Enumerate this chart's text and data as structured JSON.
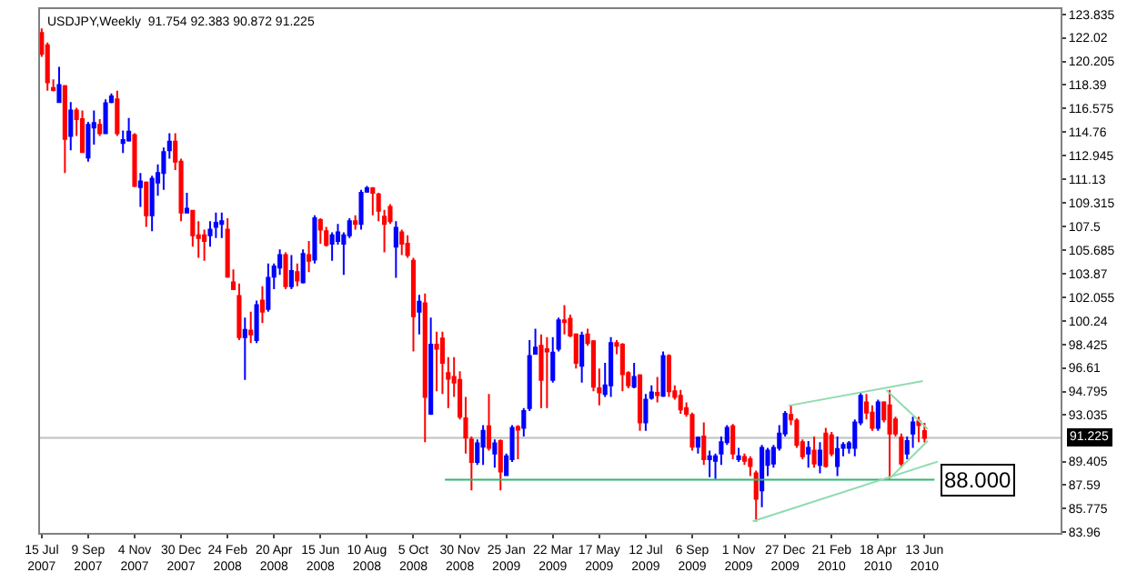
{
  "chart_data": {
    "type": "candlestick",
    "title": "USDJPY,Weekly  91.754 92.383 90.872 91.225",
    "xlim": [
      "2007-07-13",
      "2010-11-24"
    ],
    "ylim": [
      83.91,
      124.23
    ],
    "xticks": [
      {
        "value": "2007-07-15",
        "label": "15 Jul 2007"
      },
      {
        "value": "2007-09-09",
        "label": "9 Sep 2007"
      },
      {
        "value": "2007-11-04",
        "label": "4 Nov 2007"
      },
      {
        "value": "2007-12-30",
        "label": "30 Dec 2007"
      },
      {
        "value": "2008-02-24",
        "label": "24 Feb 2008"
      },
      {
        "value": "2008-04-20",
        "label": "20 Apr 2008"
      },
      {
        "value": "2008-06-15",
        "label": "15 Jun 2008"
      },
      {
        "value": "2008-08-10",
        "label": "10 Aug 2008"
      },
      {
        "value": "2008-10-05",
        "label": "5 Oct 2008"
      },
      {
        "value": "2008-11-30",
        "label": "30 Nov 2008"
      },
      {
        "value": "2009-01-25",
        "label": "25 Jan 2009"
      },
      {
        "value": "2009-03-22",
        "label": "22 Mar 2009"
      },
      {
        "value": "2009-05-17",
        "label": "17 May 2009"
      },
      {
        "value": "2009-07-12",
        "label": "12 Jul 2009"
      },
      {
        "value": "2009-09-06",
        "label": "6 Sep 2009"
      },
      {
        "value": "2009-11-01",
        "label": "1 Nov 2009"
      },
      {
        "value": "2009-12-27",
        "label": "27 Dec 2009"
      },
      {
        "value": "2010-02-21",
        "label": "21 Feb 2010"
      },
      {
        "value": "2010-04-18",
        "label": "18 Apr 2010"
      },
      {
        "value": "2010-06-13",
        "label": "13 Jun 2010"
      }
    ],
    "yticks": [
      123.835,
      122.02,
      120.205,
      118.39,
      116.575,
      114.76,
      112.945,
      111.13,
      109.315,
      107.5,
      105.685,
      103.87,
      102.055,
      100.24,
      98.425,
      96.61,
      94.795,
      93.035,
      89.405,
      87.59,
      85.775,
      83.96
    ],
    "grid": false,
    "ref_lines": [
      {
        "axis": "y",
        "value": 91.225,
        "label": "91.225",
        "color": "#c0c0c0"
      }
    ],
    "annotations": [
      {
        "text": "88.000",
        "x": "2010-06-25",
        "y": 88
      }
    ],
    "series": [
      {
        "x": [
          "2007-07-15",
          "2007-07-22",
          "2007-07-29",
          "2007-08-05",
          "2007-08-12",
          "2007-08-19",
          "2007-08-26",
          "2007-09-02",
          "2007-09-09",
          "2007-09-16",
          "2007-09-23",
          "2007-09-30",
          "2007-10-07",
          "2007-10-14",
          "2007-10-21",
          "2007-10-28",
          "2007-11-04",
          "2007-11-11",
          "2007-11-18",
          "2007-11-25",
          "2007-12-02",
          "2007-12-09",
          "2007-12-16",
          "2007-12-23",
          "2007-12-30",
          "2008-01-06",
          "2008-01-13",
          "2008-01-20",
          "2008-01-27",
          "2008-02-03",
          "2008-02-10",
          "2008-02-17",
          "2008-02-24",
          "2008-03-02",
          "2008-03-09",
          "2008-03-16",
          "2008-03-23",
          "2008-03-30",
          "2008-04-06",
          "2008-04-13",
          "2008-04-20",
          "2008-04-27",
          "2008-05-04",
          "2008-05-11",
          "2008-05-18",
          "2008-05-25",
          "2008-06-01",
          "2008-06-08",
          "2008-06-15",
          "2008-06-22",
          "2008-06-29",
          "2008-07-06",
          "2008-07-13",
          "2008-07-20",
          "2008-07-27",
          "2008-08-03",
          "2008-08-10",
          "2008-08-17",
          "2008-08-24",
          "2008-08-31",
          "2008-09-07",
          "2008-09-14",
          "2008-09-21",
          "2008-09-28",
          "2008-10-05",
          "2008-10-12",
          "2008-10-19",
          "2008-10-26",
          "2008-11-02",
          "2008-11-09",
          "2008-11-16",
          "2008-11-23",
          "2008-11-30",
          "2008-12-07",
          "2008-12-14",
          "2008-12-21",
          "2008-12-28",
          "2009-01-04",
          "2009-01-11",
          "2009-01-18",
          "2009-01-25",
          "2009-02-01",
          "2009-02-08",
          "2009-02-15",
          "2009-02-22",
          "2009-03-01",
          "2009-03-08",
          "2009-03-15",
          "2009-03-22",
          "2009-03-29",
          "2009-04-05",
          "2009-04-12",
          "2009-04-19",
          "2009-04-26",
          "2009-05-03",
          "2009-05-10",
          "2009-05-17",
          "2009-05-24",
          "2009-05-31",
          "2009-06-07",
          "2009-06-14",
          "2009-06-21",
          "2009-06-28",
          "2009-07-05",
          "2009-07-12",
          "2009-07-19",
          "2009-07-26",
          "2009-08-02",
          "2009-08-09",
          "2009-08-16",
          "2009-08-23",
          "2009-08-30",
          "2009-09-06",
          "2009-09-13",
          "2009-09-20",
          "2009-09-27",
          "2009-10-04",
          "2009-10-11",
          "2009-10-18",
          "2009-10-25",
          "2009-11-01",
          "2009-11-08",
          "2009-11-15",
          "2009-11-22",
          "2009-11-29",
          "2009-12-06",
          "2009-12-13",
          "2009-12-20",
          "2009-12-27",
          "2010-01-03",
          "2010-01-10",
          "2010-01-17",
          "2010-01-24",
          "2010-01-31",
          "2010-02-07",
          "2010-02-14",
          "2010-02-21",
          "2010-02-28",
          "2010-03-07",
          "2010-03-14",
          "2010-03-21",
          "2010-03-28",
          "2010-04-04",
          "2010-04-11",
          "2010-04-18",
          "2010-04-25",
          "2010-05-02",
          "2010-05-09",
          "2010-05-16",
          "2010-05-23",
          "2010-05-30",
          "2010-06-06",
          "2010-06-13"
        ],
        "colors": [
          "#ff0000",
          "#ff0000",
          "#ff0000",
          "#0000ff",
          "#ff0000",
          "#0000ff",
          "#ff0000",
          "#ff0000",
          "#0000ff",
          "#0000ff",
          "#ff0000",
          "#0000ff",
          "#0000ff",
          "#ff0000",
          "#0000ff",
          "#0000ff",
          "#ff0000",
          "#0000ff",
          "#ff0000",
          "#0000ff",
          "#0000ff",
          "#0000ff",
          "#0000ff",
          "#ff0000",
          "#ff0000",
          "#0000ff",
          "#ff0000",
          "#ff0000",
          "#ff0000",
          "#0000ff",
          "#0000ff",
          "#0000ff",
          "#ff0000",
          "#ff0000",
          "#ff0000",
          "#0000ff",
          "#ff0000",
          "#0000ff",
          "#ff0000",
          "#0000ff",
          "#0000ff",
          "#0000ff",
          "#ff0000",
          "#0000ff",
          "#ff0000",
          "#0000ff",
          "#ff0000",
          "#0000ff",
          "#ff0000",
          "#ff0000",
          "#0000ff",
          "#0000ff",
          "#0000ff",
          "#0000ff",
          "#ff0000",
          "#0000ff",
          "#0000ff",
          "#ff0000",
          "#ff0000",
          "#ff0000",
          "#ff0000",
          "#0000ff",
          "#ff0000",
          "#ff0000",
          "#ff0000",
          "#0000ff",
          "#ff0000",
          "#0000ff",
          "#ff0000",
          "#ff0000",
          "#ff0000",
          "#ff0000",
          "#ff0000",
          "#ff0000",
          "#ff0000",
          "#0000ff",
          "#0000ff",
          "#ff0000",
          "#0000ff",
          "#ff0000",
          "#0000ff",
          "#0000ff",
          "#ff0000",
          "#0000ff",
          "#0000ff",
          "#0000ff",
          "#ff0000",
          "#ff0000",
          "#0000ff",
          "#0000ff",
          "#ff0000",
          "#ff0000",
          "#ff0000",
          "#0000ff",
          "#ff0000",
          "#ff0000",
          "#ff0000",
          "#0000ff",
          "#0000ff",
          "#ff0000",
          "#ff0000",
          "#ff0000",
          "#0000ff",
          "#ff0000",
          "#0000ff",
          "#0000ff",
          "#ff0000",
          "#0000ff",
          "#ff0000",
          "#ff0000",
          "#ff0000",
          "#ff0000",
          "#ff0000",
          "#0000ff",
          "#ff0000",
          "#0000ff",
          "#0000ff",
          "#0000ff",
          "#0000ff",
          "#ff0000",
          "#0000ff",
          "#ff0000",
          "#ff0000",
          "#ff0000",
          "#0000ff",
          "#0000ff",
          "#0000ff",
          "#0000ff",
          "#0000ff",
          "#ff0000",
          "#ff0000",
          "#ff0000",
          "#0000ff",
          "#ff0000",
          "#0000ff",
          "#ff0000",
          "#ff0000",
          "#0000ff",
          "#0000ff",
          "#0000ff",
          "#0000ff",
          "#0000ff",
          "#ff0000",
          "#ff0000",
          "#0000ff",
          "#ff0000",
          "#ff0000",
          "#ff0000",
          "#ff0000",
          "#0000ff",
          "#0000ff",
          "#ff0000",
          "#ff0000"
        ],
        "ohlc": [
          [
            122.4,
            122.74,
            120.56,
            120.78
          ],
          [
            121.44,
            121.65,
            117.95,
            118.6
          ],
          [
            118.16,
            118.82,
            117.9,
            118.0
          ],
          [
            117.07,
            119.78,
            117.0,
            118.38
          ],
          [
            118.29,
            118.38,
            111.62,
            114.24
          ],
          [
            114.46,
            117.07,
            113.36,
            116.42
          ],
          [
            116.42,
            116.64,
            114.46,
            115.76
          ],
          [
            115.76,
            116.42,
            113.15,
            113.23
          ],
          [
            112.8,
            115.55,
            112.49,
            115.33
          ],
          [
            115.11,
            116.42,
            113.8,
            115.46
          ],
          [
            115.33,
            115.76,
            114.46,
            114.67
          ],
          [
            114.67,
            117.29,
            114.6,
            116.99
          ],
          [
            117.07,
            117.73,
            116.99,
            117.51
          ],
          [
            117.29,
            117.95,
            114.46,
            114.67
          ],
          [
            113.93,
            114.89,
            113.15,
            114.15
          ],
          [
            114.11,
            115.85,
            114.02,
            114.8
          ],
          [
            114.54,
            114.67,
            110.53,
            110.62
          ],
          [
            110.53,
            111.62,
            109.0,
            110.96
          ],
          [
            110.88,
            110.96,
            107.47,
            108.35
          ],
          [
            108.35,
            111.4,
            107.13,
            111.18
          ],
          [
            110.88,
            112.27,
            109.87,
            111.62
          ],
          [
            111.62,
            113.58,
            110.31,
            113.23
          ],
          [
            113.36,
            114.67,
            112.71,
            114.02
          ],
          [
            114.02,
            114.67,
            111.84,
            112.49
          ],
          [
            112.49,
            112.71,
            107.91,
            108.56
          ],
          [
            108.56,
            110.09,
            108.5,
            108.87
          ],
          [
            108.7,
            108.78,
            105.95,
            106.82
          ],
          [
            106.82,
            107.91,
            105.08,
            106.6
          ],
          [
            106.82,
            107.26,
            104.86,
            106.38
          ],
          [
            106.82,
            107.91,
            105.95,
            107.26
          ],
          [
            107.47,
            108.56,
            106.6,
            107.78
          ],
          [
            107.69,
            108.56,
            106.6,
            107.91
          ],
          [
            107.26,
            108.13,
            103.55,
            103.63
          ],
          [
            103.2,
            104.2,
            102.67,
            102.67
          ],
          [
            102.15,
            103.11,
            98.75,
            98.97
          ],
          [
            98.97,
            100.49,
            95.69,
            99.53
          ],
          [
            99.49,
            100.93,
            98.53,
            99.18
          ],
          [
            98.75,
            101.8,
            98.53,
            101.45
          ],
          [
            101.8,
            102.89,
            100.06,
            100.93
          ],
          [
            101.15,
            104.64,
            100.93,
            103.55
          ],
          [
            103.63,
            104.64,
            102.67,
            104.42
          ],
          [
            104.33,
            105.73,
            103.77,
            105.29
          ],
          [
            105.29,
            105.51,
            102.67,
            102.89
          ],
          [
            102.89,
            105.29,
            102.67,
            104.07
          ],
          [
            103.98,
            104.64,
            102.89,
            103.33
          ],
          [
            103.2,
            105.73,
            103.11,
            105.38
          ],
          [
            105.29,
            106.38,
            103.98,
            104.86
          ],
          [
            104.94,
            108.35,
            104.64,
            108.13
          ],
          [
            107.99,
            108.13,
            106.17,
            107.26
          ],
          [
            107.13,
            107.47,
            105.95,
            106.08
          ],
          [
            106.17,
            107.04,
            104.86,
            106.82
          ],
          [
            106.38,
            107.69,
            106.1,
            107.04
          ],
          [
            106.17,
            107.04,
            103.77,
            106.82
          ],
          [
            106.82,
            108.13,
            106.6,
            107.91
          ],
          [
            107.91,
            108.35,
            107.26,
            107.69
          ],
          [
            107.69,
            110.31,
            107.26,
            110.09
          ],
          [
            110.18,
            110.62,
            110.09,
            110.44
          ],
          [
            110.44,
            110.53,
            108.35,
            110.09
          ],
          [
            109.96,
            110.09,
            107.91,
            108.7
          ],
          [
            108.26,
            108.78,
            105.51,
            107.69
          ],
          [
            109.0,
            109.22,
            107.69,
            107.91
          ],
          [
            105.95,
            107.91,
            103.55,
            107.39
          ],
          [
            107.04,
            107.26,
            105.29,
            106.17
          ],
          [
            106.17,
            106.82,
            105.08,
            105.29
          ],
          [
            104.86,
            105.08,
            97.88,
            100.58
          ],
          [
            100.93,
            102.24,
            99.18,
            101.71
          ],
          [
            101.58,
            102.33,
            90.89,
            94.38
          ],
          [
            93.08,
            100.49,
            93.0,
            98.4
          ],
          [
            98.4,
            99.4,
            94.82,
            98.09
          ],
          [
            98.88,
            99.4,
            94.6,
            97.0
          ],
          [
            96.22,
            97.44,
            93.51,
            95.78
          ],
          [
            95.91,
            97.44,
            94.38,
            95.48
          ],
          [
            95.69,
            96.35,
            92.64,
            92.86
          ],
          [
            92.73,
            94.38,
            90.02,
            91.24
          ],
          [
            91.11,
            91.33,
            87.19,
            89.37
          ],
          [
            89.37,
            91.11,
            89.15,
            90.81
          ],
          [
            90.54,
            92.2,
            89.15,
            91.77
          ],
          [
            92.12,
            94.6,
            90.24,
            90.46
          ],
          [
            90.02,
            91.11,
            88.93,
            90.81
          ],
          [
            90.98,
            91.11,
            87.19,
            88.63
          ],
          [
            88.36,
            90.02,
            88.28,
            89.8
          ],
          [
            89.58,
            92.2,
            89.37,
            91.99
          ],
          [
            92.07,
            92.2,
            89.58,
            91.85
          ],
          [
            91.99,
            93.51,
            91.33,
            93.29
          ],
          [
            93.51,
            98.75,
            93.29,
            97.53
          ],
          [
            97.7,
            99.62,
            97.66,
            98.18
          ],
          [
            98.31,
            99.18,
            93.51,
            95.69
          ],
          [
            98.05,
            98.97,
            93.51,
            97.88
          ],
          [
            95.69,
            98.97,
            95.48,
            97.79
          ],
          [
            98.09,
            100.49,
            97.88,
            100.27
          ],
          [
            100.27,
            101.45,
            99.18,
            100.14
          ],
          [
            100.4,
            100.71,
            98.97,
            99.1
          ],
          [
            99.18,
            99.27,
            96.57,
            97.0
          ],
          [
            96.78,
            99.4,
            95.48,
            99.1
          ],
          [
            99.18,
            99.62,
            98.31,
            98.53
          ],
          [
            98.66,
            98.75,
            94.82,
            95.17
          ],
          [
            95.04,
            96.57,
            93.73,
            94.73
          ],
          [
            94.6,
            97.0,
            94.38,
            95.26
          ],
          [
            95.26,
            98.97,
            94.38,
            98.53
          ],
          [
            98.53,
            98.75,
            97.66,
            98.31
          ],
          [
            98.4,
            98.53,
            94.82,
            96.13
          ],
          [
            96.22,
            96.35,
            95.04,
            95.26
          ],
          [
            95.17,
            97.0,
            95.04,
            95.91
          ],
          [
            96.04,
            96.13,
            91.77,
            92.42
          ],
          [
            92.42,
            94.6,
            91.77,
            94.17
          ],
          [
            94.3,
            95.26,
            94.17,
            94.73
          ],
          [
            94.69,
            95.91,
            93.95,
            94.52
          ],
          [
            94.47,
            97.88,
            94.38,
            97.53
          ],
          [
            97.53,
            97.66,
            94.38,
            94.82
          ],
          [
            94.82,
            95.26,
            94.17,
            94.38
          ],
          [
            94.47,
            94.91,
            93.08,
            93.42
          ],
          [
            93.51,
            93.95,
            92.86,
            93.08
          ],
          [
            92.99,
            93.16,
            90.24,
            90.54
          ],
          [
            90.54,
            91.33,
            90.02,
            91.24
          ],
          [
            91.33,
            92.42,
            89.15,
            89.58
          ],
          [
            89.58,
            90.24,
            88.19,
            89.8
          ],
          [
            89.45,
            90.02,
            88.06,
            89.8
          ],
          [
            90.02,
            91.33,
            89.15,
            90.89
          ],
          [
            90.89,
            92.2,
            90.68,
            91.99
          ],
          [
            92.12,
            92.29,
            89.58,
            90.02
          ],
          [
            89.58,
            90.46,
            89.37,
            89.8
          ],
          [
            89.76,
            90.02,
            89.15,
            89.45
          ],
          [
            89.58,
            89.8,
            88.28,
            89.06
          ],
          [
            88.5,
            88.71,
            84.79,
            86.53
          ],
          [
            87.19,
            90.68,
            85.88,
            90.46
          ],
          [
            89.15,
            90.46,
            88.28,
            90.24
          ],
          [
            89.24,
            90.68,
            88.93,
            90.46
          ],
          [
            90.46,
            92.2,
            90.24,
            91.55
          ],
          [
            91.55,
            93.29,
            91.33,
            93.08
          ],
          [
            92.99,
            93.73,
            92.2,
            92.64
          ],
          [
            92.55,
            92.73,
            90.46,
            90.68
          ],
          [
            90.89,
            91.11,
            89.58,
            89.8
          ],
          [
            90.02,
            90.98,
            88.93,
            90.46
          ],
          [
            90.24,
            91.33,
            88.93,
            89.24
          ],
          [
            89.15,
            90.89,
            88.5,
            90.24
          ],
          [
            91.55,
            91.99,
            88.93,
            89.06
          ],
          [
            91.42,
            91.68,
            89.8,
            90.02
          ],
          [
            89.06,
            91.33,
            88.28,
            90.37
          ],
          [
            90.46,
            90.89,
            89.8,
            90.68
          ],
          [
            90.46,
            90.98,
            90.02,
            90.81
          ],
          [
            90.46,
            92.64,
            89.8,
            92.42
          ],
          [
            92.42,
            94.69,
            92.2,
            94.47
          ],
          [
            93.95,
            94.6,
            92.64,
            93.16
          ],
          [
            93.16,
            93.73,
            91.77,
            91.99
          ],
          [
            91.99,
            94.17,
            91.77,
            93.95
          ],
          [
            93.95,
            94.04,
            92.42,
            92.64
          ],
          [
            93.73,
            94.91,
            88.06,
            91.55
          ],
          [
            92.64,
            92.86,
            91.33,
            91.55
          ],
          [
            91.24,
            91.55,
            88.93,
            89.24
          ],
          [
            90.02,
            91.33,
            89.58,
            90.98
          ],
          [
            91.55,
            92.86,
            90.46,
            92.42
          ],
          [
            92.51,
            92.86,
            90.89,
            92.2
          ],
          [
            91.754,
            92.383,
            90.872,
            91.225
          ]
        ]
      },
      {
        "type": "line",
        "color": "#2eb872",
        "x": [
          "2008-11-12",
          "2010-06-25"
        ],
        "values": [
          88,
          88
        ]
      },
      {
        "type": "line",
        "color": "#8fdcae",
        "x": [
          "2009-11-18",
          "2010-06-29"
        ],
        "values": [
          84.8,
          89.4
        ]
      },
      {
        "type": "line",
        "color": "#8fdcae",
        "x": [
          "2009-12-31",
          "2010-06-11"
        ],
        "values": [
          93.7,
          95.6
        ]
      },
      {
        "type": "line",
        "color": "#8fdcae",
        "x": [
          "2010-04-28",
          "2010-06-17"
        ],
        "values": [
          94.9,
          91.9
        ]
      },
      {
        "type": "line",
        "color": "#8fdcae",
        "x": [
          "2010-05-02",
          "2010-06-17"
        ],
        "values": [
          88.1,
          91.0
        ]
      }
    ]
  }
}
